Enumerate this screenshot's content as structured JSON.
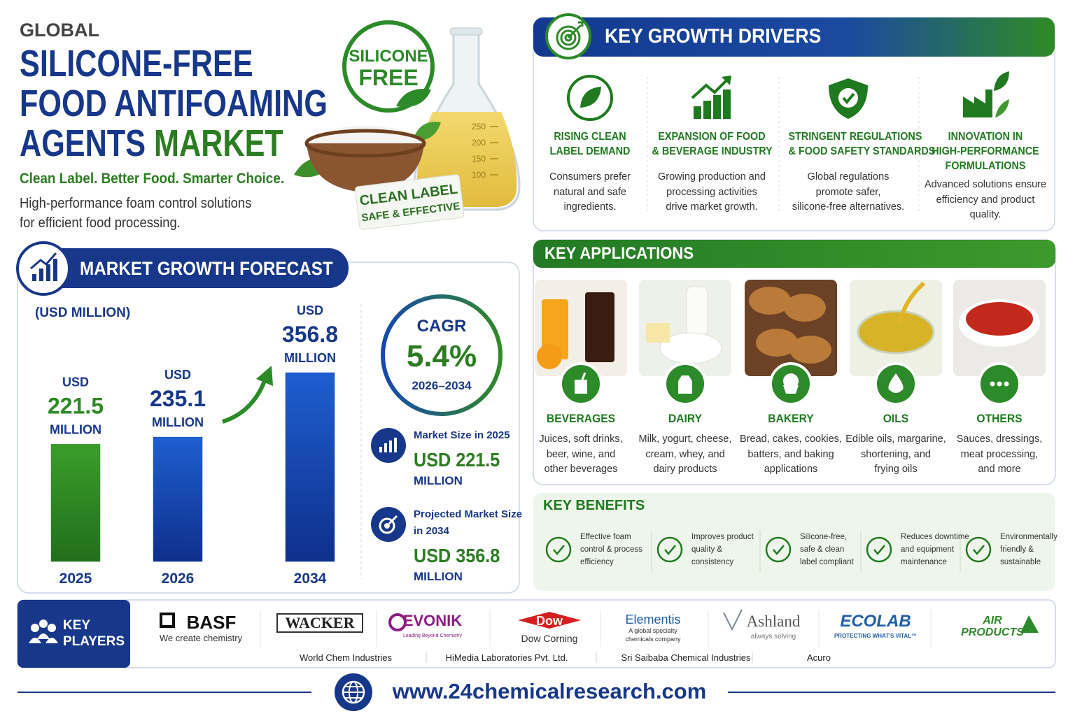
{
  "header": {
    "eyebrow": "GLOBAL",
    "title_lines": [
      "SILICONE-FREE",
      "FOOD ANTIFOAMING",
      "AGENTS"
    ],
    "title_highlight": "MARKET",
    "tagline": "Clean Label. Better Food. Smarter Choice.",
    "description_lines": [
      "High-performance foam control solutions",
      "for efficient food processing."
    ]
  },
  "hero": {
    "badge_lines": [
      "SILICONE",
      "FREE"
    ],
    "label_lines": [
      "CLEAN LABEL",
      "SAFE & EFFECTIVE"
    ],
    "flask_marks": [
      "250",
      "200",
      "150",
      "100"
    ]
  },
  "forecast": {
    "title": "MARKET GROWTH FORECAST",
    "unit": "(USD MILLION)"
  },
  "chart_data": {
    "type": "bar",
    "categories": [
      "2025",
      "2026",
      "2034"
    ],
    "values": [
      221.5,
      235.1,
      356.8
    ],
    "colors": [
      "#2f8a26",
      "#1748b0",
      "#1748b0"
    ],
    "value_prefix": "USD",
    "value_suffix": "MILLION"
  },
  "cagr": {
    "label": "CAGR",
    "value": "5.4%",
    "period": "2026–2034"
  },
  "stats": [
    {
      "label_lines": [
        "Market Size in 2025"
      ],
      "value": "USD 221.5",
      "unit": "MILLION"
    },
    {
      "label_lines": [
        "Projected Market Size",
        "in 2034"
      ],
      "value": "USD 356.8",
      "unit": "MILLION"
    }
  ],
  "drivers": {
    "title": "KEY GROWTH DRIVERS",
    "items": [
      {
        "title_lines": [
          "RISING CLEAN",
          "LABEL DEMAND"
        ],
        "text_lines": [
          "Consumers prefer",
          "natural and safe",
          "ingredients."
        ]
      },
      {
        "title_lines": [
          "EXPANSION OF FOOD",
          "& BEVERAGE INDUSTRY"
        ],
        "text_lines": [
          "Growing production and",
          "processing activities",
          "drive market growth."
        ]
      },
      {
        "title_lines": [
          "STRINGENT REGULATIONS",
          "& FOOD SAFETY STANDARDS"
        ],
        "text_lines": [
          "Global regulations",
          "promote safer,",
          "silicone-free alternatives."
        ]
      },
      {
        "title_lines": [
          "INNOVATION IN",
          "HIGH-PERFORMANCE",
          "FORMULATIONS"
        ],
        "text_lines": [
          "Advanced solutions ensure",
          "efficiency and product",
          "quality."
        ]
      }
    ]
  },
  "applications": {
    "title": "KEY APPLICATIONS",
    "items": [
      {
        "title": "BEVERAGES",
        "text_lines": [
          "Juices, soft drinks,",
          "beer, wine, and",
          "other beverages"
        ]
      },
      {
        "title": "DAIRY",
        "text_lines": [
          "Milk, yogurt, cheese,",
          "cream, whey, and",
          "dairy products"
        ]
      },
      {
        "title": "BAKERY",
        "text_lines": [
          "Bread, cakes, cookies,",
          "batters, and baking",
          "applications"
        ]
      },
      {
        "title": "OILS",
        "text_lines": [
          "Edible oils, margarine,",
          "shortening, and",
          "frying oils"
        ]
      },
      {
        "title": "OTHERS",
        "text_lines": [
          "Sauces, dressings,",
          "meat processing,",
          "and more"
        ]
      }
    ]
  },
  "benefits": {
    "title": "KEY BENEFITS",
    "items": [
      {
        "text_lines": [
          "Effective foam",
          "control & process",
          "efficiency"
        ]
      },
      {
        "text_lines": [
          "Improves product",
          "quality &",
          "consistency"
        ]
      },
      {
        "text_lines": [
          "Silicone-free,",
          "safe & clean",
          "label compliant"
        ]
      },
      {
        "text_lines": [
          "Reduces downtime",
          "and equipment",
          "maintenance"
        ]
      },
      {
        "text_lines": [
          "Environmentally",
          "friendly &",
          "sustainable"
        ]
      }
    ]
  },
  "key_players": {
    "title_lines": [
      "KEY",
      "PLAYERS"
    ],
    "logos": [
      {
        "name_lines": [
          "BASF"
        ],
        "tagline_lines": [
          "We create chemistry"
        ]
      },
      {
        "name_lines": [
          "WACKER"
        ]
      },
      {
        "name_lines": [
          "EVONIK"
        ],
        "tagline_lines": [
          "Leading Beyond Chemistry"
        ]
      },
      {
        "name_lines": [
          "Dow"
        ],
        "tagline_lines": [
          "Dow Corning"
        ]
      },
      {
        "name_lines": [
          "Elementis"
        ],
        "tagline_lines": [
          "A global specialty",
          "chemicals company"
        ]
      },
      {
        "name_lines": [
          "Ashland"
        ],
        "tagline_lines": [
          "always solving"
        ]
      },
      {
        "name_lines": [
          "ECOLAB"
        ],
        "tagline_lines": [
          "PROTECTING WHAT'S VITAL™"
        ]
      },
      {
        "name_lines": [
          "AIR",
          "PRODUCTS"
        ]
      }
    ],
    "others": [
      "World Chem Industries",
      "HiMedia Laboratories Pvt. Ltd.",
      "Sri Saibaba Chemical Industries",
      "Acuro"
    ]
  },
  "footer": {
    "url": "www.24chemicalresearch.com"
  }
}
